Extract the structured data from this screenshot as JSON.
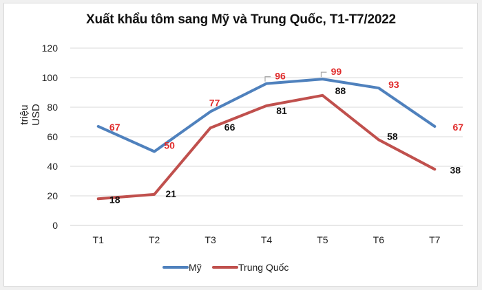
{
  "chart_data": {
    "type": "line",
    "title": "Xuất khẩu tôm sang Mỹ và Trung Quốc, T1-T7/2022",
    "xlabel": "",
    "ylabel": "triệu USD",
    "categories": [
      "T1",
      "T2",
      "T3",
      "T4",
      "T5",
      "T6",
      "T7"
    ],
    "series": [
      {
        "name": "Mỹ",
        "color": "#4f81bd",
        "label_color": "#e02b2b",
        "values": [
          67,
          50,
          77,
          96,
          99,
          93,
          67
        ]
      },
      {
        "name": "Trung Quốc",
        "color": "#c0504d",
        "label_color": "#111111",
        "values": [
          18,
          21,
          66,
          81,
          88,
          58,
          38
        ]
      }
    ],
    "ylim": [
      0,
      120
    ],
    "yticks": [
      0,
      20,
      40,
      60,
      80,
      100,
      120
    ],
    "grid": true,
    "legend_position": "bottom"
  },
  "legend": {
    "items": [
      "Mỹ",
      "Trung Quốc"
    ]
  }
}
